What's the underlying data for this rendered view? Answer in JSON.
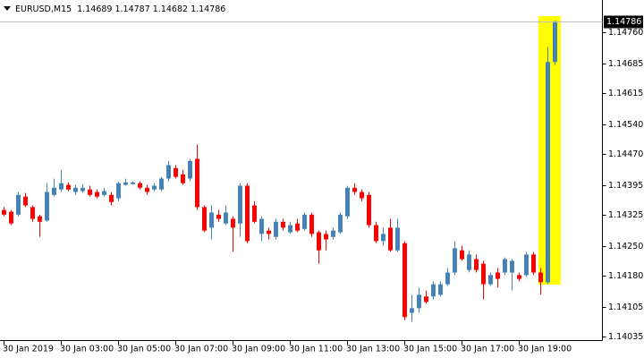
{
  "chart_data": {
    "type": "candlestick",
    "title": "EURUSD,M15",
    "categories": [
      "30 Jan 2019",
      null,
      null,
      null,
      null,
      null,
      null,
      null,
      "30 Jan 03:00",
      null,
      null,
      null,
      null,
      null,
      null,
      null,
      "30 Jan 05:00",
      null,
      null,
      null,
      null,
      null,
      null,
      null,
      "30 Jan 07:00",
      null,
      null,
      null,
      null,
      null,
      null,
      null,
      "30 Jan 09:00",
      null,
      null,
      null,
      null,
      null,
      null,
      null,
      "30 Jan 11:00",
      null,
      null,
      null,
      null,
      null,
      null,
      null,
      "30 Jan 13:00",
      null,
      null,
      null,
      null,
      null,
      null,
      null,
      "30 Jan 15:00",
      null,
      null,
      null,
      null,
      null,
      null,
      null,
      "30 Jan 17:00",
      null,
      null,
      null,
      null,
      null,
      null,
      null,
      "30 Jan 19:00",
      null,
      null,
      null,
      null,
      null
    ],
    "open": [
      1.14336,
      1.14332,
      1.14325,
      1.14368,
      1.14343,
      1.14321,
      1.14311,
      1.14372,
      1.14385,
      1.14396,
      1.14379,
      1.14381,
      1.14385,
      1.14379,
      1.14372,
      1.14372,
      1.14364,
      1.14396,
      1.14398,
      1.144,
      1.14389,
      1.14385,
      1.14385,
      1.14411,
      1.14436,
      1.14421,
      1.14411,
      1.14458,
      1.14343,
      1.14294,
      1.14325,
      1.14304,
      1.14315,
      1.14304,
      1.14394,
      1.14347,
      1.14279,
      1.14287,
      1.14272,
      1.14308,
      1.14283,
      1.14304,
      1.14291,
      1.14325,
      1.14283,
      1.14279,
      1.14272,
      1.14283,
      1.14321,
      1.14389,
      1.14379,
      1.14372,
      1.143,
      1.14262,
      1.14294,
      1.1424,
      1.14257,
      1.14091,
      1.14102,
      1.1413,
      1.1413,
      1.14134,
      1.14159,
      1.14187,
      1.1424,
      1.14193,
      1.14219,
      1.14208,
      1.14159,
      1.14187,
      1.14187,
      1.14187,
      1.14181,
      1.14181,
      1.1423,
      1.14187,
      1.14164,
      1.14689
    ],
    "high": [
      1.14343,
      1.14336,
      1.14379,
      1.14377,
      1.14347,
      1.14325,
      1.144,
      1.14411,
      1.14432,
      1.14402,
      1.14396,
      1.14398,
      1.14394,
      1.14385,
      1.14389,
      1.14379,
      1.14404,
      1.14411,
      1.14404,
      1.14404,
      1.14396,
      1.144,
      1.14415,
      1.14453,
      1.14443,
      1.14432,
      1.14458,
      1.14492,
      1.14347,
      1.14347,
      1.14336,
      1.14347,
      1.14321,
      1.144,
      1.144,
      1.14357,
      1.14321,
      1.14294,
      1.14315,
      1.14315,
      1.14308,
      1.14315,
      1.1433,
      1.1433,
      1.14287,
      1.14287,
      1.14294,
      1.1433,
      1.14394,
      1.144,
      1.14385,
      1.14379,
      1.14308,
      1.14294,
      1.14315,
      1.14315,
      1.14262,
      1.14134,
      1.14151,
      1.14144,
      1.14166,
      1.14166,
      1.14198,
      1.14262,
      1.14251,
      1.1424,
      1.1423,
      1.14215,
      1.14187,
      1.14198,
      1.14223,
      1.14219,
      1.14187,
      1.14236,
      1.14236,
      1.14198,
      1.14725,
      1.14787
    ],
    "low": [
      1.14321,
      1.143,
      1.14321,
      1.14343,
      1.14308,
      1.14272,
      1.14308,
      1.14368,
      1.14379,
      1.14381,
      1.14372,
      1.14377,
      1.14368,
      1.14364,
      1.14368,
      1.14347,
      1.14357,
      1.14394,
      1.14396,
      1.14385,
      1.14372,
      1.14381,
      1.14381,
      1.14404,
      1.14411,
      1.14396,
      1.14404,
      1.14336,
      1.14283,
      1.14266,
      1.14308,
      1.143,
      1.14236,
      1.14272,
      1.14257,
      1.14304,
      1.14262,
      1.14266,
      1.14266,
      1.14287,
      1.14279,
      1.14283,
      1.14287,
      1.14272,
      1.14208,
      1.1424,
      1.14266,
      1.14279,
      1.14315,
      1.14372,
      1.14357,
      1.14294,
      1.14257,
      1.14251,
      1.14236,
      1.14236,
      1.14074,
      1.1407,
      1.14091,
      1.14113,
      1.14123,
      1.1413,
      1.14155,
      1.14181,
      1.14215,
      1.14187,
      1.14187,
      1.14123,
      1.14155,
      1.14151,
      1.14181,
      1.14144,
      1.14166,
      1.14176,
      1.14181,
      1.14134,
      1.14159,
      1.14682
    ],
    "close": [
      1.14325,
      1.14304,
      1.14372,
      1.14347,
      1.14315,
      1.14308,
      1.14379,
      1.14389,
      1.144,
      1.14385,
      1.14389,
      1.14389,
      1.14372,
      1.14368,
      1.14381,
      1.14355,
      1.144,
      1.14402,
      1.14402,
      1.14389,
      1.14379,
      1.14394,
      1.14411,
      1.14443,
      1.14415,
      1.144,
      1.14453,
      1.14343,
      1.14287,
      1.1433,
      1.14315,
      1.1433,
      1.14294,
      1.14394,
      1.14262,
      1.14308,
      1.14315,
      1.14279,
      1.14308,
      1.14294,
      1.143,
      1.14287,
      1.14325,
      1.14279,
      1.1424,
      1.14266,
      1.14287,
      1.14325,
      1.14389,
      1.14379,
      1.14364,
      1.143,
      1.14262,
      1.14279,
      1.1424,
      1.14294,
      1.14081,
      1.14102,
      1.14134,
      1.14117,
      1.14159,
      1.14159,
      1.14187,
      1.14245,
      1.14219,
      1.1423,
      1.14193,
      1.14159,
      1.14181,
      1.14172,
      1.14219,
      1.14215,
      1.14172,
      1.1423,
      1.14187,
      1.14164,
      1.14689,
      1.14786
    ],
    "up_color": "#4682b4",
    "down_color": "#ff0000",
    "ylim": [
      1.14026,
      1.14811
    ],
    "yticks": [
      {
        "value": 1.1476,
        "label": "1.14760"
      },
      1.14685,
      1.14615,
      {
        "value": 1.1454,
        "label": "1.14540"
      },
      {
        "value": 1.1447,
        "label": "1.14470"
      },
      1.14395,
      1.14325,
      {
        "value": 1.1425,
        "label": "1.14250"
      },
      {
        "value": 1.1418,
        "label": "1.14180"
      },
      1.14105,
      1.14035
    ]
  }
}
